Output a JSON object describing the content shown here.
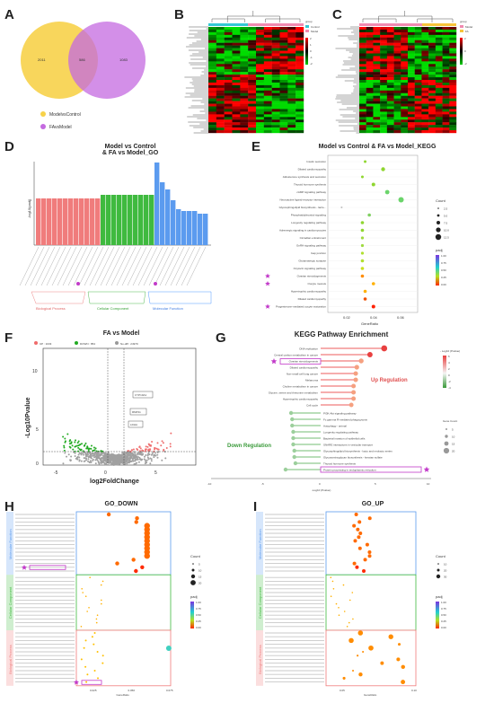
{
  "panels": {
    "A": {
      "label": "A"
    },
    "B": {
      "label": "B"
    },
    "C": {
      "label": "C"
    },
    "D": {
      "label": "D"
    },
    "E": {
      "label": "E"
    },
    "F": {
      "label": "F"
    },
    "G": {
      "label": "G"
    },
    "H": {
      "label": "H"
    },
    "I": {
      "label": "I"
    }
  },
  "venn": {
    "left_count": "2011",
    "overlap_count": "586",
    "right_count": "1083",
    "legend1": "ModelvsControl",
    "legend2": "FAvsModel",
    "color1": "#f7d24a",
    "color2": "#c46ae0"
  },
  "heatmap_legend": {
    "title": "group",
    "g1": "Control",
    "g2": "Model",
    "g3": "FA"
  },
  "heatmap_scale": [
    "2",
    "1",
    "0",
    "-1",
    "-2"
  ],
  "panelD": {
    "title_line1": "Model vs Control",
    "title_line2": "& FA vs Model_GO",
    "ylabel": "-log10(padj)",
    "cat1": "Biological Process",
    "cat2": "Cellular Component",
    "cat3": "Molecular Function"
  },
  "panelE": {
    "title": "Model vs Control & FA vs Model_KEGG",
    "xlabel": "GeneRatio",
    "count_title": "Count",
    "padj_title": "padj",
    "count_levels": [
      "2.5",
      "5.0",
      "7.5",
      "10.0",
      "12.5"
    ],
    "padj_levels": [
      "1.00",
      "0.75",
      "0.50",
      "0.25",
      "0.00"
    ],
    "xticks": [
      "0.02",
      "0.04",
      "0.06"
    ],
    "terms": [
      "Insulin secretion",
      "Dilated cardiomyopathy",
      "Aldosterone synthesis and secretion",
      "Thyroid hormone synthesis",
      "cAMP signaling pathway",
      "Neuroactive ligand-receptor interaction",
      "Glycosphingolipid biosynthesis - lacto...",
      "Phosphatidylinositol signaling",
      "Longevity regulating pathway",
      "Adrenergic signaling in cardiomyocytes",
      "Circadian entrainment",
      "GnRH signaling pathway",
      "Gap junction",
      "Glutamatergic synapse",
      "Oxytocin signaling pathway",
      "Ovarian steroidogenesis",
      "Oocyte meiosis",
      "Hypertrophic cardiomyopathy",
      "Dilated cardiomyopathy",
      "Progesterone-mediated oocyte maturation"
    ]
  },
  "panelF": {
    "title": "FA vs Model",
    "legend_up": "UP : 1033",
    "legend_down": "DOWN : 854",
    "legend_no": "No-diff : 24979",
    "xlabel": "log2FoldChange",
    "ylabel": "-Log10Pvalue",
    "xticks": [
      "-5",
      "0",
      "5"
    ],
    "yticks": [
      "0",
      "5",
      "10"
    ],
    "genes": [
      "CYP19A1",
      "RMP11",
      "LDHA"
    ]
  },
  "panelG": {
    "title": "KEGG Pathway Enrichment",
    "xlabel": "-Log10 (Pvalue)",
    "up_label": "Up Regulation",
    "down_label": "Down Regulation",
    "legend_p": "- Log10 (Pvalue)",
    "legend_count": "Gene Count",
    "p_levels": [
      "6",
      "4",
      "2",
      "0",
      "-2",
      "-4"
    ],
    "count_levels": [
      "5",
      "10",
      "15",
      "20"
    ],
    "xticks": [
      "-10",
      "-5",
      "0",
      "5",
      "10"
    ],
    "up_terms": [
      "DNA replication",
      "Central carbon metabolism in cancer",
      "Ovarian steroidogenesis",
      "Dilated cardiomyopathy",
      "Non-small cell lung cancer",
      "Melanoma",
      "Choline metabolism in cancer",
      "Glycine, serine and threonine metabolism",
      "Hypertrophic cardiomyopathy",
      "Cell cycle"
    ],
    "down_terms": [
      "PI3K-Akt signaling pathway",
      "Fc gamma R-mediated phagocytosis",
      "Autophagy - animal",
      "Longevity regulating pathway",
      "Bacterial invasion of epithelial cells",
      "SNARE interactions in vesicular transport",
      "Glycosphingolipid biosynthesis - lacto and neolacto series",
      "Glycosaminoglycan biosynthesis - keratan sulfate",
      "Thyroid hormone synthesis",
      "Protein processing in endoplasmic reticulum"
    ]
  },
  "panelH": {
    "title": "GO_DOWN",
    "xlabel": "GeneRatio",
    "cat1": "Molecular Function",
    "cat2": "Cellular Component",
    "cat3": "Biological Process",
    "count_title": "Count",
    "padj_title": "padj",
    "count_levels": [
      "5",
      "10",
      "15",
      "20"
    ],
    "padj_levels": [
      "1.00",
      "0.75",
      "0.50",
      "0.25",
      "0.00"
    ],
    "xticks": [
      "0.025",
      "0.050",
      "0.075"
    ]
  },
  "panelI": {
    "title": "GO_UP",
    "xlabel": "GeneRatio",
    "cat1": "Molecular Function",
    "cat2": "Cellular Component",
    "cat3": "Biological Process",
    "count_title": "Count",
    "padj_title": "padj",
    "count_levels": [
      "10",
      "20",
      "30"
    ],
    "padj_levels": [
      "1.00",
      "0.75",
      "0.50",
      "0.25",
      "0.00"
    ],
    "xticks": [
      "0.05",
      "0.10"
    ]
  }
}
